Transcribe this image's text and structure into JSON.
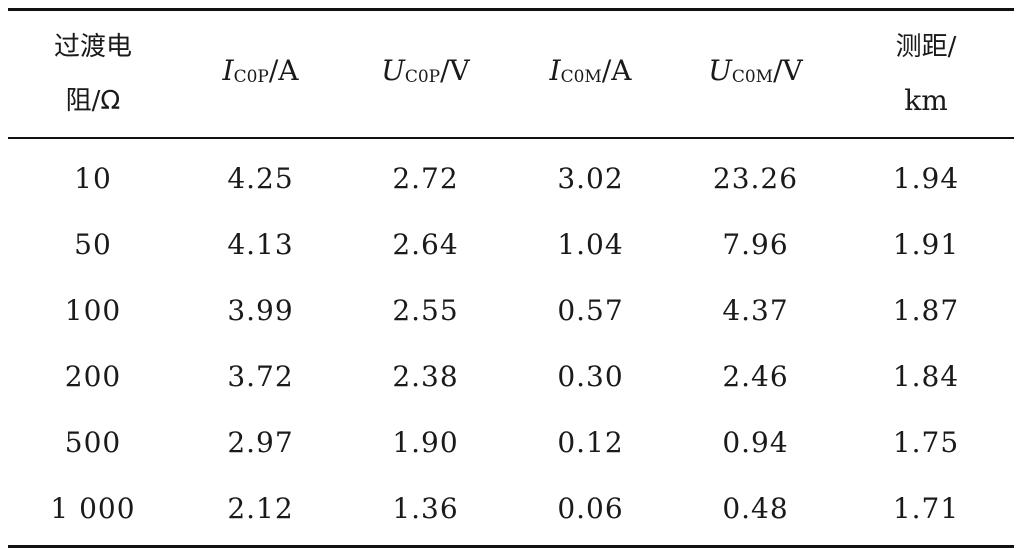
{
  "table": {
    "headers": {
      "resistance": {
        "line1": "过渡电",
        "line2": "阻/Ω"
      },
      "i_c0p": {
        "symbol": "I",
        "subscript": "C0P",
        "unit": "/A"
      },
      "u_c0p": {
        "symbol": "U",
        "subscript": "C0P",
        "unit": "/V"
      },
      "i_c0m": {
        "symbol": "I",
        "subscript": "C0M",
        "unit": "/A"
      },
      "u_c0m": {
        "symbol": "U",
        "subscript": "C0M",
        "unit": "/V"
      },
      "distance": {
        "line1": "测距/",
        "line2": "km"
      }
    },
    "rows": [
      [
        "10",
        "4.25",
        "2.72",
        "3.02",
        "23.26",
        "1.94"
      ],
      [
        "50",
        "4.13",
        "2.64",
        "1.04",
        "7.96",
        "1.91"
      ],
      [
        "100",
        "3.99",
        "2.55",
        "0.57",
        "4.37",
        "1.87"
      ],
      [
        "200",
        "3.72",
        "2.38",
        "0.30",
        "2.46",
        "1.84"
      ],
      [
        "500",
        "2.97",
        "1.90",
        "0.12",
        "0.94",
        "1.75"
      ],
      [
        "1 000",
        "2.12",
        "1.36",
        "0.06",
        "0.48",
        "1.71"
      ]
    ]
  }
}
